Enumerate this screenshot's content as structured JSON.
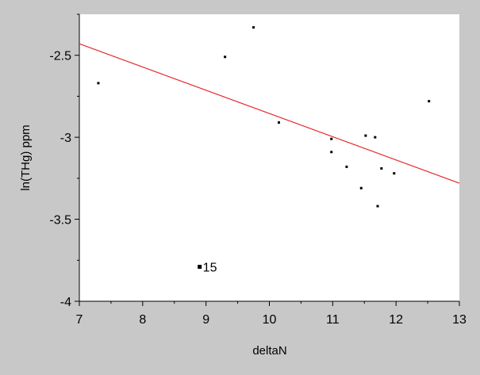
{
  "chart_data": {
    "type": "scatter",
    "xlabel": "deltaN",
    "ylabel": "ln(THg) ppm",
    "xlim": [
      7,
      13
    ],
    "ylim": [
      -4,
      -2.25
    ],
    "xticks": [
      7,
      8,
      9,
      10,
      11,
      12,
      13
    ],
    "yticks": [
      -4,
      -3.5,
      -3,
      -2.5
    ],
    "xtick_labels": [
      "7",
      "8",
      "9",
      "10",
      "11",
      "12",
      "13"
    ],
    "ytick_labels": [
      "-4",
      "-3.5",
      "-3",
      "-2.5"
    ],
    "grid": false,
    "points": [
      {
        "x": 7.3,
        "y": -2.67
      },
      {
        "x": 8.9,
        "y": -3.79,
        "label": "15"
      },
      {
        "x": 9.3,
        "y": -2.51
      },
      {
        "x": 9.75,
        "y": -2.33
      },
      {
        "x": 10.15,
        "y": -2.91
      },
      {
        "x": 10.98,
        "y": -3.01
      },
      {
        "x": 10.98,
        "y": -3.09
      },
      {
        "x": 11.22,
        "y": -3.18
      },
      {
        "x": 11.45,
        "y": -3.31
      },
      {
        "x": 11.52,
        "y": -2.99
      },
      {
        "x": 11.67,
        "y": -3.0
      },
      {
        "x": 11.71,
        "y": -3.42
      },
      {
        "x": 11.77,
        "y": -3.19
      },
      {
        "x": 11.97,
        "y": -3.22
      },
      {
        "x": 12.52,
        "y": -2.78
      }
    ],
    "fit_line": {
      "x": [
        7,
        13
      ],
      "y": [
        -2.43,
        -3.28
      ],
      "color": "#e8262b"
    },
    "colors": {
      "background": "#c8c8c8",
      "plot_bg": "#ffffff",
      "points": "#000000"
    }
  }
}
